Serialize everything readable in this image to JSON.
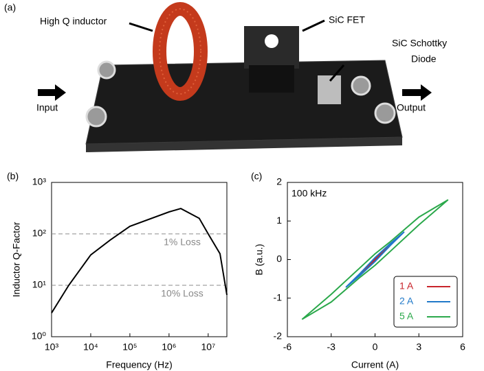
{
  "photo": {
    "label": "(a)",
    "inductor": "High Q inductor",
    "fet": "SiC FET",
    "diode": [
      "SiC Schottky",
      "Diode"
    ],
    "input": "Input",
    "output": "Output"
  },
  "chart_data": [
    {
      "type": "line",
      "panel": "(b)",
      "xlabel": "Frequency (Hz)",
      "ylabel": "Inductor Q-Factor",
      "xlog": true,
      "ylog": true,
      "xlim": [
        1000,
        30000000
      ],
      "ylim": [
        1,
        1000
      ],
      "xticks": [
        {
          "value": 1000,
          "label": "10³"
        },
        {
          "value": 10000,
          "label": "10⁴"
        },
        {
          "value": 100000,
          "label": "10⁵"
        },
        {
          "value": 1000000,
          "label": "10⁶"
        },
        {
          "value": 10000000,
          "label": "10⁷"
        }
      ],
      "yticks": [
        {
          "value": 1,
          "label": "10⁰"
        },
        {
          "value": 10,
          "label": "10¹"
        },
        {
          "value": 100,
          "label": "10²"
        },
        {
          "value": 1000,
          "label": "10³"
        }
      ],
      "hlines": [
        {
          "value": 100,
          "label": "1% Loss"
        },
        {
          "value": 10,
          "label": "10% Loss"
        }
      ],
      "x": [
        1000,
        2750,
        10000,
        31600,
        100000,
        1000000,
        2000000,
        5900000,
        10000000,
        20000000,
        30000000
      ],
      "values": [
        2.9,
        10,
        39,
        76,
        140,
        267,
        310,
        200,
        100,
        41,
        6.5
      ],
      "color": "#000000"
    },
    {
      "type": "line",
      "panel": "(c)",
      "xlabel": "Current (A)",
      "ylabel": "B (a.u.)",
      "annotation": "100 kHz",
      "xlim": [
        -6,
        6
      ],
      "ylim": [
        -2,
        2
      ],
      "xticks": [
        -6,
        -3,
        0,
        3,
        6
      ],
      "yticks": [
        -2,
        -1,
        0,
        1,
        2
      ],
      "legend": "lower right",
      "series": [
        {
          "name": "1 A",
          "color": "#c8232a",
          "x": [
            -1,
            0,
            1,
            0,
            -1
          ],
          "values": [
            -0.35,
            -0.02,
            0.35,
            0.02,
            -0.35
          ]
        },
        {
          "name": "2 A",
          "color": "#1f78c8",
          "x": [
            -2,
            -1,
            0,
            1,
            2,
            1,
            0,
            -1,
            -2
          ],
          "values": [
            -0.72,
            -0.4,
            -0.05,
            0.35,
            0.72,
            0.4,
            0.05,
            -0.35,
            -0.72
          ]
        },
        {
          "name": "5 A",
          "color": "#2aa84a",
          "x": [
            -5,
            -3,
            -1,
            0,
            1,
            3,
            5,
            3,
            1,
            0,
            -1,
            -3,
            -5
          ],
          "values": [
            -1.55,
            -1.1,
            -0.45,
            -0.15,
            0.2,
            0.9,
            1.55,
            1.1,
            0.45,
            0.15,
            -0.2,
            -0.9,
            -1.55
          ]
        }
      ]
    }
  ]
}
